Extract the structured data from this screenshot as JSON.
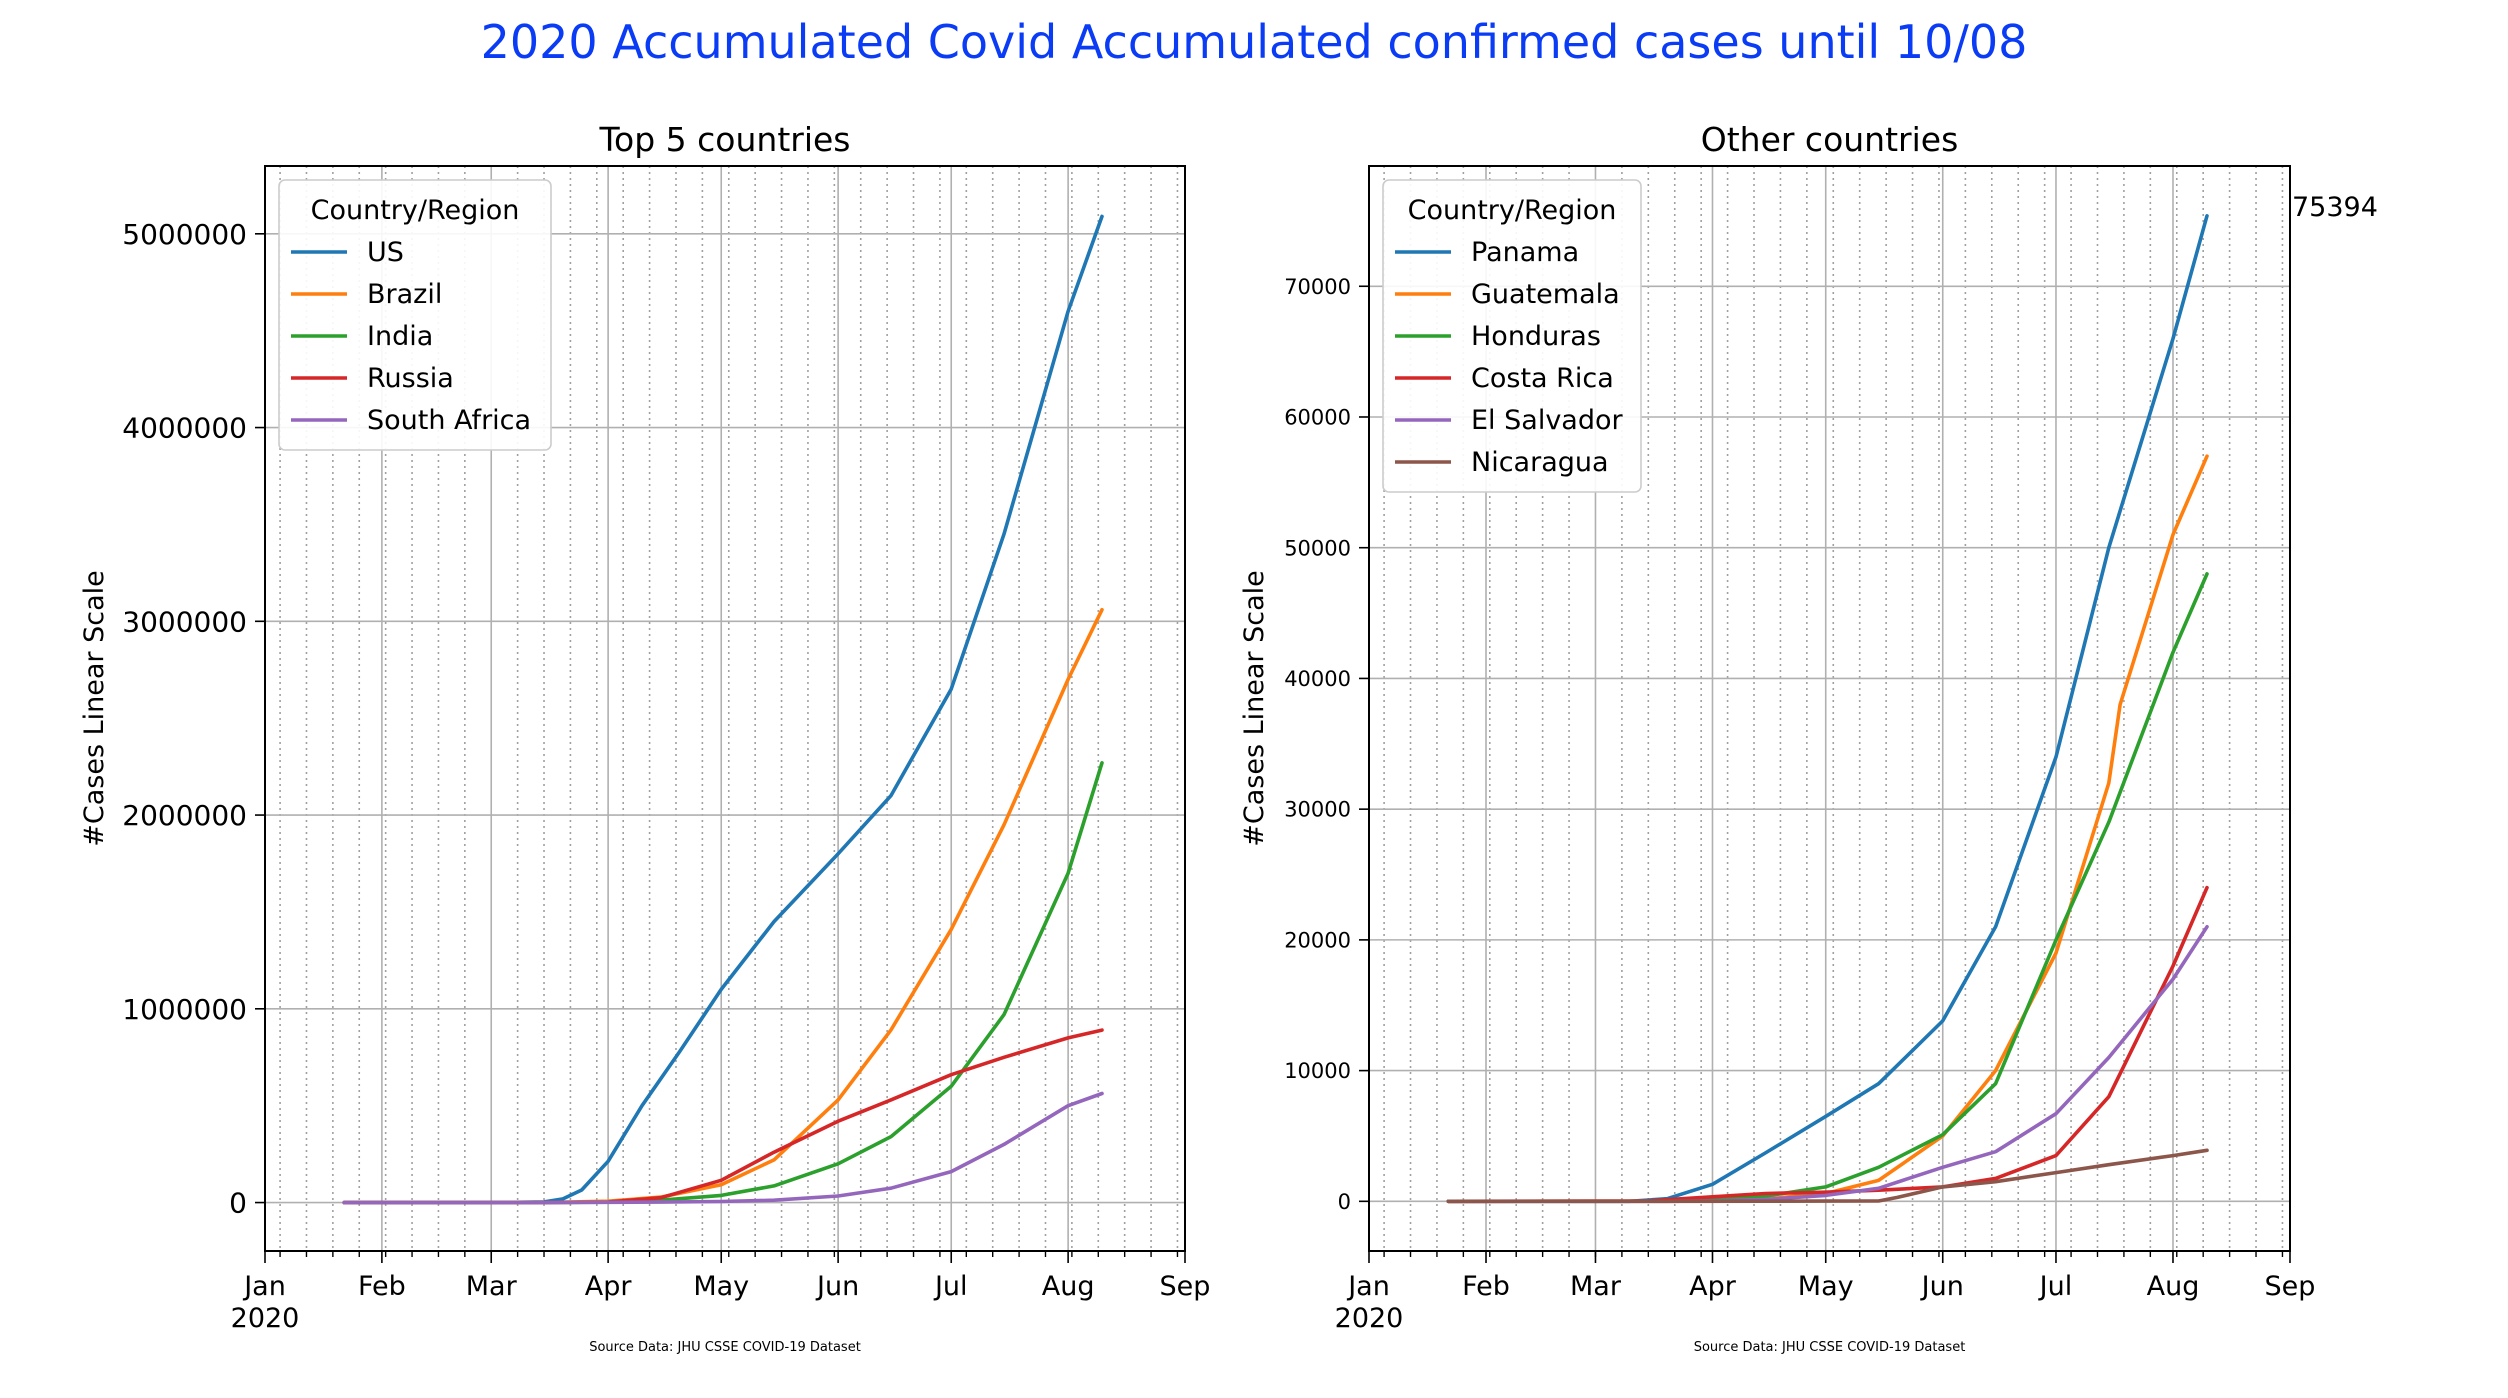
{
  "figure": {
    "title": "2020 Accumulated Covid Accumulated confirmed cases until 10/08",
    "title_color": "#0b3cf5"
  },
  "chart_data": [
    {
      "type": "line",
      "title": "Top 5 countries",
      "ylabel": "#Cases Linear Scale",
      "xlabel": "",
      "source": "Source Data: JHU CSSE COVID-19 Dataset",
      "x_tick_labels": [
        "Jan",
        "Feb",
        "Mar",
        "Apr",
        "May",
        "Jun",
        "Jul",
        "Aug",
        "Sep"
      ],
      "x_year_label": "2020",
      "x_range": [
        "2020-01-01",
        "2020-09-01"
      ],
      "ylim": [
        -250000,
        5350000
      ],
      "y_ticks": [
        0,
        1000000,
        2000000,
        3000000,
        4000000,
        5000000
      ],
      "y_tick_labels": [
        "0",
        "1000000",
        "2000000",
        "3000000",
        "4000000",
        "5000000"
      ],
      "grid": true,
      "legend": {
        "title": "Country/Region",
        "placement": "top-left"
      },
      "series": [
        {
          "name": "US",
          "color": "#1f77b4",
          "points": [
            [
              "2020-01-22",
              0
            ],
            [
              "2020-03-01",
              30
            ],
            [
              "2020-03-15",
              3500
            ],
            [
              "2020-03-20",
              19000
            ],
            [
              "2020-03-25",
              65000
            ],
            [
              "2020-04-01",
              213000
            ],
            [
              "2020-04-10",
              500000
            ],
            [
              "2020-04-20",
              780000
            ],
            [
              "2020-05-01",
              1100000
            ],
            [
              "2020-05-15",
              1450000
            ],
            [
              "2020-06-01",
              1800000
            ],
            [
              "2020-06-15",
              2100000
            ],
            [
              "2020-07-01",
              2650000
            ],
            [
              "2020-07-15",
              3450000
            ],
            [
              "2020-08-01",
              4600000
            ],
            [
              "2020-08-10",
              5090000
            ]
          ]
        },
        {
          "name": "Brazil",
          "color": "#ff7f0e",
          "points": [
            [
              "2020-01-22",
              0
            ],
            [
              "2020-03-15",
              200
            ],
            [
              "2020-04-01",
              6800
            ],
            [
              "2020-04-15",
              28000
            ],
            [
              "2020-05-01",
              92000
            ],
            [
              "2020-05-15",
              220000
            ],
            [
              "2020-06-01",
              530000
            ],
            [
              "2020-06-15",
              890000
            ],
            [
              "2020-07-01",
              1410000
            ],
            [
              "2020-07-15",
              1950000
            ],
            [
              "2020-08-01",
              2700000
            ],
            [
              "2020-08-10",
              3060000
            ]
          ]
        },
        {
          "name": "India",
          "color": "#2ca02c",
          "points": [
            [
              "2020-01-22",
              0
            ],
            [
              "2020-03-15",
              100
            ],
            [
              "2020-04-01",
              2000
            ],
            [
              "2020-04-15",
              12000
            ],
            [
              "2020-05-01",
              37000
            ],
            [
              "2020-05-15",
              86000
            ],
            [
              "2020-06-01",
              200000
            ],
            [
              "2020-06-15",
              340000
            ],
            [
              "2020-07-01",
              600000
            ],
            [
              "2020-07-15",
              970000
            ],
            [
              "2020-08-01",
              1700000
            ],
            [
              "2020-08-10",
              2270000
            ]
          ]
        },
        {
          "name": "Russia",
          "color": "#d62728",
          "points": [
            [
              "2020-01-22",
              0
            ],
            [
              "2020-03-15",
              60
            ],
            [
              "2020-04-01",
              2800
            ],
            [
              "2020-04-15",
              25000
            ],
            [
              "2020-05-01",
              115000
            ],
            [
              "2020-05-15",
              260000
            ],
            [
              "2020-06-01",
              420000
            ],
            [
              "2020-06-15",
              530000
            ],
            [
              "2020-07-01",
              660000
            ],
            [
              "2020-07-15",
              750000
            ],
            [
              "2020-08-01",
              850000
            ],
            [
              "2020-08-10",
              890000
            ]
          ]
        },
        {
          "name": "South Africa",
          "color": "#9467bd",
          "points": [
            [
              "2020-01-22",
              0
            ],
            [
              "2020-03-15",
              50
            ],
            [
              "2020-04-01",
              1400
            ],
            [
              "2020-04-15",
              2500
            ],
            [
              "2020-05-01",
              5700
            ],
            [
              "2020-05-15",
              12000
            ],
            [
              "2020-06-01",
              34000
            ],
            [
              "2020-06-15",
              74000
            ],
            [
              "2020-07-01",
              160000
            ],
            [
              "2020-07-15",
              300000
            ],
            [
              "2020-08-01",
              500000
            ],
            [
              "2020-08-10",
              563000
            ]
          ]
        }
      ]
    },
    {
      "type": "line",
      "title": "Other countries",
      "ylabel": "#Cases Linear Scale",
      "xlabel": "",
      "source": "Source Data: JHU CSSE COVID-19 Dataset",
      "annotation": "75394",
      "x_tick_labels": [
        "Jan",
        "Feb",
        "Mar",
        "Apr",
        "May",
        "Jun",
        "Jul",
        "Aug",
        "Sep"
      ],
      "x_year_label": "2020",
      "x_range": [
        "2020-01-01",
        "2020-09-01"
      ],
      "ylim": [
        -3800,
        79200
      ],
      "y_ticks": [
        0,
        10000,
        20000,
        30000,
        40000,
        50000,
        60000,
        70000
      ],
      "y_tick_labels": [
        "0",
        "10000",
        "20000",
        "30000",
        "40000",
        "50000",
        "60000",
        "70000"
      ],
      "grid": true,
      "legend": {
        "title": "Country/Region",
        "placement": "top-left"
      },
      "series": [
        {
          "name": "Panama",
          "color": "#1f77b4",
          "points": [
            [
              "2020-01-22",
              0
            ],
            [
              "2020-03-10",
              1
            ],
            [
              "2020-03-20",
              200
            ],
            [
              "2020-04-01",
              1300
            ],
            [
              "2020-04-15",
              3700
            ],
            [
              "2020-05-01",
              6500
            ],
            [
              "2020-05-15",
              9000
            ],
            [
              "2020-06-01",
              13800
            ],
            [
              "2020-06-15",
              21000
            ],
            [
              "2020-07-01",
              34000
            ],
            [
              "2020-07-15",
              50000
            ],
            [
              "2020-08-01",
              66000
            ],
            [
              "2020-08-10",
              75394
            ]
          ]
        },
        {
          "name": "Guatemala",
          "color": "#ff7f0e",
          "points": [
            [
              "2020-01-22",
              0
            ],
            [
              "2020-03-15",
              6
            ],
            [
              "2020-04-01",
              40
            ],
            [
              "2020-04-15",
              180
            ],
            [
              "2020-05-01",
              600
            ],
            [
              "2020-05-15",
              1600
            ],
            [
              "2020-06-01",
              5000
            ],
            [
              "2020-06-15",
              10000
            ],
            [
              "2020-07-01",
              19000
            ],
            [
              "2020-07-15",
              32000
            ],
            [
              "2020-07-18",
              38000
            ],
            [
              "2020-08-01",
              51000
            ],
            [
              "2020-08-10",
              57000
            ]
          ]
        },
        {
          "name": "Honduras",
          "color": "#2ca02c",
          "points": [
            [
              "2020-01-22",
              0
            ],
            [
              "2020-03-15",
              6
            ],
            [
              "2020-04-01",
              150
            ],
            [
              "2020-04-15",
              400
            ],
            [
              "2020-05-01",
              1100
            ],
            [
              "2020-05-15",
              2600
            ],
            [
              "2020-06-01",
              5100
            ],
            [
              "2020-06-15",
              9000
            ],
            [
              "2020-07-01",
              20000
            ],
            [
              "2020-07-15",
              29000
            ],
            [
              "2020-08-01",
              42000
            ],
            [
              "2020-08-10",
              48000
            ]
          ]
        },
        {
          "name": "Costa Rica",
          "color": "#d62728",
          "points": [
            [
              "2020-01-22",
              0
            ],
            [
              "2020-03-15",
              30
            ],
            [
              "2020-04-01",
              350
            ],
            [
              "2020-04-15",
              600
            ],
            [
              "2020-05-01",
              700
            ],
            [
              "2020-05-15",
              850
            ],
            [
              "2020-06-01",
              1100
            ],
            [
              "2020-06-15",
              1750
            ],
            [
              "2020-07-01",
              3500
            ],
            [
              "2020-07-15",
              8000
            ],
            [
              "2020-08-01",
              18000
            ],
            [
              "2020-08-10",
              24000
            ]
          ]
        },
        {
          "name": "El Salvador",
          "color": "#9467bd",
          "points": [
            [
              "2020-01-22",
              0
            ],
            [
              "2020-03-20",
              1
            ],
            [
              "2020-04-01",
              35
            ],
            [
              "2020-04-15",
              150
            ],
            [
              "2020-05-01",
              450
            ],
            [
              "2020-05-15",
              1000
            ],
            [
              "2020-06-01",
              2600
            ],
            [
              "2020-06-15",
              3800
            ],
            [
              "2020-07-01",
              6700
            ],
            [
              "2020-07-15",
              11000
            ],
            [
              "2020-08-01",
              17000
            ],
            [
              "2020-08-10",
              21000
            ]
          ]
        },
        {
          "name": "Nicaragua",
          "color": "#8c564b",
          "points": [
            [
              "2020-01-22",
              0
            ],
            [
              "2020-03-20",
              1
            ],
            [
              "2020-04-15",
              10
            ],
            [
              "2020-05-01",
              15
            ],
            [
              "2020-05-15",
              25
            ],
            [
              "2020-05-20",
              300
            ],
            [
              "2020-06-01",
              1100
            ],
            [
              "2020-06-15",
              1500
            ],
            [
              "2020-07-01",
              2200
            ],
            [
              "2020-07-15",
              2800
            ],
            [
              "2020-08-01",
              3500
            ],
            [
              "2020-08-10",
              3900
            ]
          ]
        }
      ]
    }
  ]
}
